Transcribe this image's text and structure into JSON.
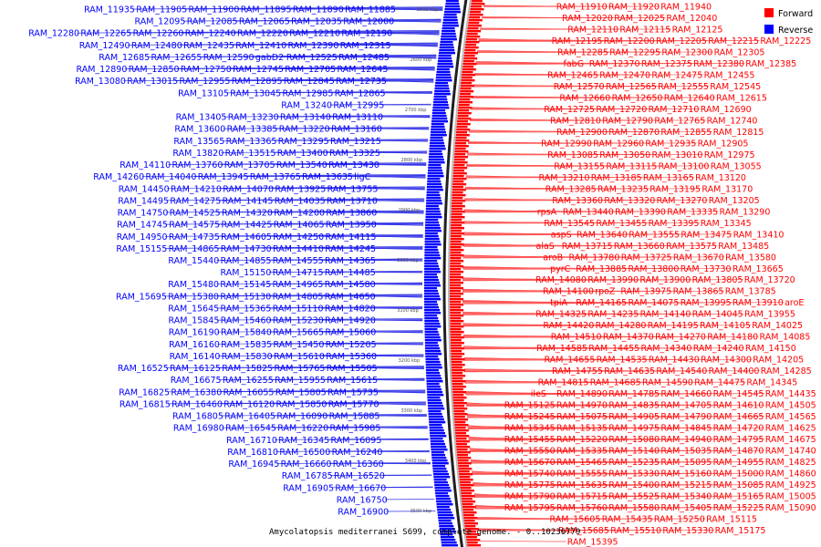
{
  "caption": "Amycolatopsis mediterranei S699, complete genome. - 0..10236779",
  "legend": [
    {
      "label": "Forward",
      "color": "#ff0000"
    },
    {
      "label": "Reverse",
      "color": "#0000ff"
    }
  ],
  "strand_colors": {
    "forward": "#ff0000",
    "reverse": "#0000ff",
    "forward_line": "#ff5050",
    "reverse_line": "#3434e6"
  },
  "ticks": [
    "2500 kbp",
    "2600 kbp",
    "2700 kbp",
    "2800 kbp",
    "2900 kbp",
    "3000 kbp",
    "3100 kbp",
    "3200 kbp",
    "3300 kbp",
    "3400 kbp",
    "3500 kbp"
  ],
  "reverse_labels": [
    [
      "RAM_11935",
      "RAM_11905",
      "RAM_11900",
      "RAM_11895",
      "RAM_11890",
      "RAM_11885"
    ],
    [
      "RAM_12095",
      "RAM_12085",
      "RAM_12065",
      "RAM_12035",
      "RAM_12000"
    ],
    [
      "RAM_12280",
      "RAM_12265",
      "RAM_12260",
      "RAM_12240",
      "RAM_12220",
      "RAM_12210",
      "RAM_12190"
    ],
    [
      "RAM_12490",
      "RAM_12480",
      "RAM_12435",
      "RAM_12410",
      "RAM_12390",
      "RAM_12315"
    ],
    [
      "RAM_12685",
      "RAM_12655",
      "RAM_12590",
      "gabD2",
      "RAM_12525",
      "RAM_12485"
    ],
    [
      "RAM_12890",
      "RAM_12850",
      "RAM_12750",
      "RAM_12745",
      "RAM_12705",
      "RAM_12645"
    ],
    [
      "RAM_13080",
      "RAM_13015",
      "RAM_12955",
      "RAM_12895",
      "RAM_12845",
      "RAM_12735"
    ],
    [
      "RAM_13105",
      "RAM_13045",
      "RAM_12985",
      "RAM_12865"
    ],
    [
      "RAM_13240",
      "RAM_12995"
    ],
    [
      "RAM_13405",
      "RAM_13230",
      "RAM_13140",
      "RAM_13110"
    ],
    [
      "RAM_13600",
      "RAM_13385",
      "RAM_13220",
      "RAM_13160"
    ],
    [
      "RAM_13565",
      "RAM_13365",
      "RAM_13295",
      "RAM_13215"
    ],
    [
      "RAM_13820",
      "RAM_13515",
      "RAM_13400",
      "RAM_13325"
    ],
    [
      "RAM_14110",
      "RAM_13760",
      "RAM_13705",
      "RAM_13540",
      "RAM_13430"
    ],
    [
      "RAM_14260",
      "RAM_14040",
      "RAM_13945",
      "RAM_13765",
      "RAM_13635",
      "ligC"
    ],
    [
      "RAM_14450",
      "RAM_14210",
      "RAM_14070",
      "RAM_13925",
      "RAM_13755"
    ],
    [
      "RAM_14495",
      "RAM_14275",
      "RAM_14145",
      "RAM_14035",
      "RAM_13710"
    ],
    [
      "RAM_14750",
      "RAM_14525",
      "RAM_14320",
      "RAM_14200",
      "RAM_13860"
    ],
    [
      "RAM_14745",
      "RAM_14575",
      "RAM_14425",
      "RAM_14065",
      "RAM_13950"
    ],
    [
      "RAM_14950",
      "RAM_14735",
      "RAM_14605",
      "RAM_14250",
      "RAM_14115"
    ],
    [
      "RAM_15155",
      "RAM_14865",
      "RAM_14730",
      "RAM_14410",
      "RAM_14245"
    ],
    [
      "RAM_15440",
      "RAM_14855",
      "RAM_14555",
      "RAM_14365"
    ],
    [
      "RAM_15150",
      "RAM_14715",
      "RAM_14485"
    ],
    [
      "RAM_15480",
      "RAM_15145",
      "RAM_14965",
      "RAM_14580"
    ],
    [
      "RAM_15695",
      "RAM_15380",
      "RAM_15130",
      "RAM_14805",
      "RAM_14650"
    ],
    [
      "RAM_15645",
      "RAM_15365",
      "RAM_15110",
      "RAM_14820"
    ],
    [
      "RAM_15845",
      "RAM_15460",
      "RAM_15230",
      "RAM_14920"
    ],
    [
      "RAM_16190",
      "RAM_15840",
      "RAM_15665",
      "RAM_15060"
    ],
    [
      "RAM_16160",
      "RAM_15835",
      "RAM_15450",
      "RAM_15205"
    ],
    [
      "RAM_16140",
      "RAM_15830",
      "RAM_15610",
      "RAM_15360"
    ],
    [
      "RAM_16525",
      "RAM_16125",
      "RAM_15825",
      "RAM_15765",
      "RAM_15505"
    ],
    [
      "RAM_16675",
      "RAM_16255",
      "RAM_15955",
      "RAM_15615"
    ],
    [
      "RAM_16825",
      "RAM_16380",
      "RAM_16055",
      "RAM_15805",
      "RAM_15735"
    ],
    [
      "RAM_16815",
      "RAM_16460",
      "RAM_16120",
      "RAM_15850",
      "RAM_15770"
    ],
    [
      "RAM_16805",
      "RAM_16405",
      "RAM_16090",
      "RAM_15885"
    ],
    [
      "RAM_16980",
      "RAM_16545",
      "RAM_16220",
      "RAM_15985"
    ],
    [
      "RAM_16710",
      "RAM_16345",
      "RAM_16095"
    ],
    [
      "RAM_16810",
      "RAM_16500",
      "RAM_16240"
    ],
    [
      "RAM_16945",
      "RAM_16660",
      "RAM_16360"
    ],
    [
      "RAM_16785",
      "RAM_16520"
    ],
    [
      "RAM_16905",
      "RAM_16670"
    ],
    [
      "RAM_16750"
    ],
    [
      "RAM_16900"
    ]
  ],
  "forward_labels": [
    [
      "RAM_11910",
      "RAM_11920",
      "RAM_11940"
    ],
    [
      "RAM_12020",
      "RAM_12025",
      "RAM_12040"
    ],
    [
      "RAM_12110",
      "RAM_12115",
      "RAM_12125"
    ],
    [
      "RAM_12195",
      "RAM_12200",
      "RAM_12205",
      "RAM_12215",
      "RAM_12225"
    ],
    [
      "RAM_12285",
      "RAM_12295",
      "RAM_12300",
      "RAM_12305"
    ],
    [
      "fabG",
      "RAM_12370",
      "RAM_12375",
      "RAM_12380",
      "RAM_12385"
    ],
    [
      "RAM_12465",
      "RAM_12470",
      "RAM_12475",
      "RAM_12455"
    ],
    [
      "RAM_12570",
      "RAM_12565",
      "RAM_12555",
      "RAM_12545"
    ],
    [
      "RAM_12660",
      "RAM_12650",
      "RAM_12640",
      "RAM_12615"
    ],
    [
      "RAM_12725",
      "RAM_12720",
      "RAM_12710",
      "RAM_12690"
    ],
    [
      "RAM_12810",
      "RAM_12790",
      "RAM_12765",
      "RAM_12740"
    ],
    [
      "RAM_12900",
      "RAM_12870",
      "RAM_12855",
      "RAM_12815"
    ],
    [
      "RAM_12990",
      "RAM_12960",
      "RAM_12935",
      "RAM_12905"
    ],
    [
      "RAM_13085",
      "RAM_13050",
      "RAM_13010",
      "RAM_12975"
    ],
    [
      "RAM_13155",
      "RAM_13115",
      "RAM_13100",
      "RAM_13055"
    ],
    [
      "RAM_13210",
      "RAM_13185",
      "RAM_13165",
      "RAM_13120"
    ],
    [
      "RAM_13285",
      "RAM_13235",
      "RAM_13195",
      "RAM_13170"
    ],
    [
      "RAM_13360",
      "RAM_13320",
      "RAM_13270",
      "RAM_13205"
    ],
    [
      "rpsA",
      "RAM_13440",
      "RAM_13390",
      "RAM_13335",
      "RAM_13290"
    ],
    [
      "RAM_13545",
      "RAM_13455",
      "RAM_13395",
      "RAM_13345"
    ],
    [
      "aspS",
      "RAM_13640",
      "RAM_13555",
      "RAM_13475",
      "RAM_13410"
    ],
    [
      "alaS",
      "RAM_13715",
      "RAM_13660",
      "RAM_13575",
      "RAM_13485"
    ],
    [
      "aroB",
      "RAM_13780",
      "RAM_13725",
      "RAM_13670",
      "RAM_13580"
    ],
    [
      "pyrC",
      "RAM_13885",
      "RAM_13800",
      "RAM_13730",
      "RAM_13665"
    ],
    [
      "RAM_14080",
      "RAM_13990",
      "RAM_13900",
      "RAM_13805",
      "RAM_13720"
    ],
    [
      "RAM_14100",
      "rpoZ",
      "RAM_13975",
      "RAM_13865",
      "RAM_13785"
    ],
    [
      "tpiA",
      "RAM_14165",
      "RAM_14075",
      "RAM_13995",
      "RAM_13910",
      "aroE"
    ],
    [
      "RAM_14325",
      "RAM_14235",
      "RAM_14140",
      "RAM_14045",
      "RAM_13955"
    ],
    [
      "RAM_14420",
      "RAM_14280",
      "RAM_14195",
      "RAM_14105",
      "RAM_14025"
    ],
    [
      "RAM_14510",
      "RAM_14370",
      "RAM_14270",
      "RAM_14180",
      "RAM_14085"
    ],
    [
      "RAM_14585",
      "RAM_14455",
      "RAM_14340",
      "RAM_14240",
      "RAM_14150"
    ],
    [
      "RAM_14655",
      "RAM_14535",
      "RAM_14430",
      "RAM_14300",
      "RAM_14205"
    ],
    [
      "RAM_14755",
      "RAM_14635",
      "RAM_14540",
      "RAM_14400",
      "RAM_14285"
    ],
    [
      "RAM_14815",
      "RAM_14685",
      "RAM_14590",
      "RAM_14475",
      "RAM_14345"
    ],
    [
      "ileS",
      "RAM_14890",
      "RAM_14785",
      "RAM_14660",
      "RAM_14545",
      "RAM_14435"
    ],
    [
      "RAM_15125",
      "RAM_14970",
      "RAM_14835",
      "RAM_14705",
      "RAM_14610",
      "RAM_14505"
    ],
    [
      "RAM_15245",
      "RAM_15075",
      "RAM_14905",
      "RAM_14790",
      "RAM_14665",
      "RAM_14565"
    ],
    [
      "RAM_15345",
      "RAM_15135",
      "RAM_14975",
      "RAM_14845",
      "RAM_14720",
      "RAM_14625"
    ],
    [
      "RAM_15455",
      "RAM_15220",
      "RAM_15080",
      "RAM_14940",
      "RAM_14795",
      "RAM_14675"
    ],
    [
      "RAM_15550",
      "RAM_15335",
      "RAM_15140",
      "RAM_15035",
      "RAM_14870",
      "RAM_14740"
    ],
    [
      "RAM_15670",
      "RAM_15465",
      "RAM_15235",
      "RAM_15095",
      "RAM_14955",
      "RAM_14825"
    ],
    [
      "RAM_15740",
      "RAM_15555",
      "RAM_15330",
      "RAM_15160",
      "RAM_15000",
      "RAM_14860"
    ],
    [
      "RAM_15775",
      "RAM_15635",
      "RAM_15400",
      "RAM_15215",
      "RAM_15085",
      "RAM_14925"
    ],
    [
      "RAM_15790",
      "RAM_15715",
      "RAM_15525",
      "RAM_15340",
      "RAM_15165",
      "RAM_15005"
    ],
    [
      "RAM_15795",
      "RAM_15760",
      "RAM_15580",
      "RAM_15405",
      "RAM_15225",
      "RAM_15090"
    ],
    [
      "RAM_15605",
      "RAM_15435",
      "RAM_15250",
      "RAM_15115"
    ],
    [
      "RAM_15685",
      "RAM_15510",
      "RAM_15330",
      "RAM_15175"
    ],
    [
      "RAM_15395"
    ]
  ]
}
